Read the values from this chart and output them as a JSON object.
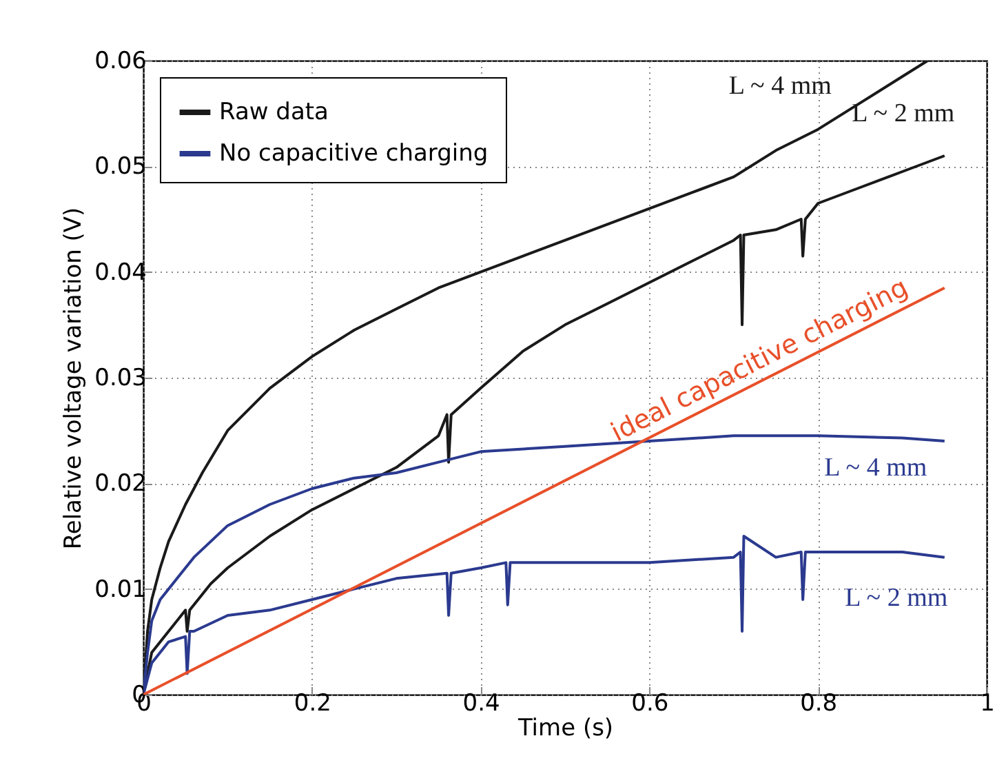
{
  "chart_data": {
    "type": "line",
    "xlabel": "Time (s)",
    "ylabel": "Relative voltage variation (V)",
    "xlim": [
      0,
      1
    ],
    "xticks": [
      0,
      0.2,
      0.4,
      0.6,
      0.8,
      1
    ],
    "ylim": [
      0,
      0.06
    ],
    "yticks": [
      0,
      0.01,
      0.02,
      0.03,
      0.04,
      0.05,
      0.06
    ],
    "grid": true,
    "legend": "top left",
    "marker": "none",
    "line_style": "solid",
    "series": [
      {
        "name": "Raw data",
        "color": "#1a1a1a",
        "x": [
          0,
          0.005,
          0.01,
          0.02,
          0.03,
          0.05,
          0.07,
          0.1,
          0.15,
          0.2,
          0.25,
          0.3,
          0.35,
          0.4,
          0.45,
          0.5,
          0.55,
          0.6,
          0.65,
          0.7,
          0.75,
          0.8,
          0.85,
          0.9,
          0.93
        ],
        "values": [
          0,
          0.006,
          0.009,
          0.012,
          0.0145,
          0.018,
          0.021,
          0.025,
          0.029,
          0.032,
          0.0345,
          0.0365,
          0.0385,
          0.04,
          0.0415,
          0.043,
          0.0445,
          0.046,
          0.0475,
          0.049,
          0.0515,
          0.0535,
          0.056,
          0.0585,
          0.06
        ]
      },
      {
        "color": "#1a1a1a",
        "x": [
          0,
          0.01,
          0.03,
          0.05,
          0.052,
          0.055,
          0.08,
          0.1,
          0.15,
          0.2,
          0.25,
          0.3,
          0.35,
          0.36,
          0.362,
          0.365,
          0.4,
          0.45,
          0.5,
          0.55,
          0.6,
          0.65,
          0.7,
          0.708,
          0.71,
          0.712,
          0.75,
          0.78,
          0.782,
          0.785,
          0.8,
          0.85,
          0.9,
          0.95
        ],
        "values": [
          0,
          0.004,
          0.006,
          0.008,
          0.006,
          0.008,
          0.0105,
          0.012,
          0.015,
          0.0175,
          0.0195,
          0.0215,
          0.0245,
          0.0265,
          0.022,
          0.0265,
          0.029,
          0.0325,
          0.035,
          0.037,
          0.039,
          0.041,
          0.043,
          0.0435,
          0.035,
          0.0435,
          0.044,
          0.045,
          0.0415,
          0.045,
          0.0465,
          0.048,
          0.0495,
          0.051
        ]
      },
      {
        "name": "No capacitive charging",
        "color": "#2b3a8f",
        "x": [
          0,
          0.005,
          0.01,
          0.02,
          0.04,
          0.06,
          0.1,
          0.15,
          0.2,
          0.25,
          0.3,
          0.35,
          0.4,
          0.5,
          0.6,
          0.7,
          0.8,
          0.9,
          0.95
        ],
        "values": [
          0,
          0.004,
          0.007,
          0.009,
          0.011,
          0.013,
          0.016,
          0.018,
          0.0195,
          0.0205,
          0.021,
          0.022,
          0.023,
          0.0235,
          0.024,
          0.0245,
          0.0245,
          0.0243,
          0.024
        ]
      },
      {
        "color": "#2b3a8f",
        "x": [
          0,
          0.01,
          0.03,
          0.05,
          0.052,
          0.055,
          0.06,
          0.1,
          0.15,
          0.2,
          0.25,
          0.3,
          0.36,
          0.362,
          0.365,
          0.4,
          0.43,
          0.432,
          0.435,
          0.5,
          0.6,
          0.7,
          0.708,
          0.71,
          0.712,
          0.75,
          0.78,
          0.782,
          0.785,
          0.85,
          0.9,
          0.95
        ],
        "values": [
          0,
          0.003,
          0.005,
          0.0055,
          0.002,
          0.006,
          0.006,
          0.0075,
          0.008,
          0.009,
          0.01,
          0.011,
          0.0115,
          0.0075,
          0.0115,
          0.012,
          0.0125,
          0.0085,
          0.0125,
          0.0125,
          0.0125,
          0.013,
          0.0135,
          0.006,
          0.015,
          0.013,
          0.0135,
          0.009,
          0.0135,
          0.0135,
          0.0135,
          0.013
        ]
      },
      {
        "name": "ideal capacitive charging",
        "color": "#e8502a",
        "x": [
          0,
          0.95
        ],
        "values": [
          0,
          0.0385
        ]
      }
    ],
    "annotations": [
      "L ~ 4 mm",
      "L ~ 2 mm",
      "L ~ 4 mm",
      "L ~ 2 mm"
    ]
  }
}
